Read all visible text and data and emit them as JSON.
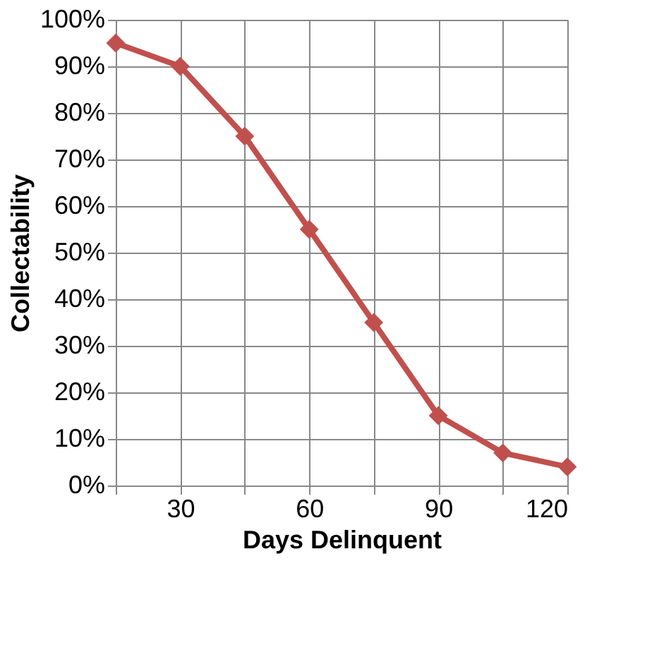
{
  "chart_data": {
    "type": "line",
    "xlabel": "Days Delinquent",
    "ylabel": "Collectability",
    "x": [
      15,
      30,
      45,
      60,
      75,
      90,
      105,
      120
    ],
    "series": [
      {
        "color": "#c0504d",
        "values": [
          95,
          90,
          75,
          55,
          35,
          15,
          7,
          4
        ]
      }
    ],
    "xlim": [
      15,
      120
    ],
    "xticks": [
      {
        "value": 15,
        "label": null
      },
      30,
      {
        "value": 45,
        "label": null
      },
      60,
      {
        "value": 75,
        "label": null
      },
      90,
      {
        "value": 105,
        "label": null
      },
      120
    ],
    "ylim": [
      0,
      100
    ],
    "yticks": [
      {
        "value": 0,
        "label": "0%"
      },
      {
        "value": 10,
        "label": "10%"
      },
      {
        "value": 20,
        "label": "20%"
      },
      {
        "value": 30,
        "label": "30%"
      },
      {
        "value": 40,
        "label": "40%"
      },
      {
        "value": 50,
        "label": "50%"
      },
      {
        "value": 60,
        "label": "60%"
      },
      {
        "value": 70,
        "label": "70%"
      },
      {
        "value": 80,
        "label": "80%"
      },
      {
        "value": 90,
        "label": "90%"
      },
      {
        "value": 100,
        "label": "100%"
      }
    ],
    "grid": true,
    "marker": "diamond",
    "line_style": "solid"
  }
}
